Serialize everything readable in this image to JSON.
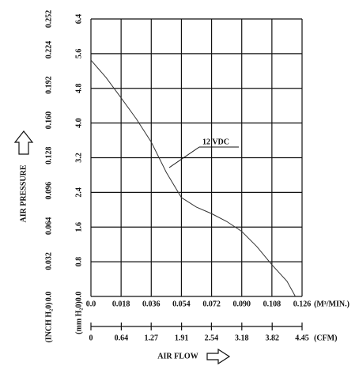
{
  "chart_data": {
    "type": "line",
    "x": [
      0,
      0.009,
      0.018,
      0.027,
      0.036,
      0.045,
      0.054,
      0.063,
      0.072,
      0.081,
      0.09,
      0.099,
      0.108,
      0.117,
      0.122
    ],
    "series": [
      {
        "name": "12 VDC",
        "color": "#333333",
        "values": [
          5.45,
          5.05,
          4.58,
          4.1,
          3.56,
          2.86,
          2.28,
          2.06,
          1.91,
          1.73,
          1.5,
          1.15,
          0.73,
          0.35,
          0
        ]
      }
    ],
    "xlim": [
      0,
      0.126
    ],
    "xticks": [
      {
        "value": 0,
        "label": "0.0"
      },
      0.018,
      0.036,
      0.054,
      0.072,
      {
        "value": 0.09,
        "label": "0.090"
      },
      0.108,
      0.126
    ],
    "x_unit": "(M³/MIN.)",
    "ylim": [
      0,
      6.4
    ],
    "yticks": [
      {
        "value": 0,
        "label": "0.0"
      },
      0.8,
      1.6,
      2.4,
      3.2,
      {
        "value": 4,
        "label": "4.0"
      },
      4.8,
      5.6,
      6.4
    ],
    "ylabel": "(mm H₂0)",
    "y2lim": [
      0,
      0.252
    ],
    "y2ticks": [
      {
        "value": 0,
        "label": "0.0"
      },
      0.032,
      0.064,
      0.096,
      0.128,
      {
        "value": 0.16,
        "label": "0.160"
      },
      0.192,
      0.224,
      0.252
    ],
    "y2label": "(INCH H₂0)",
    "x2lim": [
      0,
      4.45
    ],
    "x2ticks": [
      0,
      0.64,
      1.27,
      1.91,
      2.54,
      3.18,
      3.82,
      4.45
    ],
    "x2_unit": "(CFM)",
    "xlabel": "AIR FLOW",
    "pressure_label": "AIR PRESSURE",
    "grid": true
  }
}
